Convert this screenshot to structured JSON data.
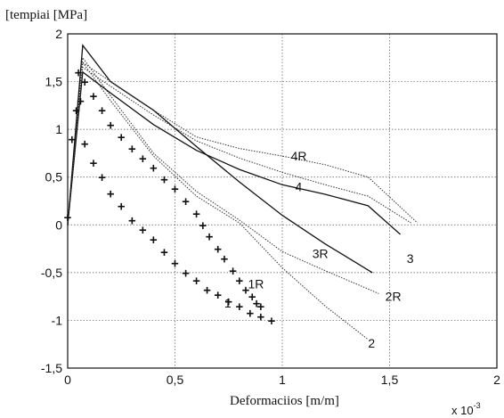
{
  "chart_data": {
    "type": "line",
    "ylabel": "[tempiai [MPa]",
    "xlabel": "Deformaciios [m/m]",
    "x_multiplier": "x 10",
    "x_multiplier_exp": "-3",
    "xlim": [
      0,
      2
    ],
    "ylim": [
      -1.5,
      2
    ],
    "grid": true,
    "x_ticks": [
      "0",
      "0,5",
      "1",
      "1,5",
      "2"
    ],
    "y_ticks": [
      "2",
      "1,5",
      "1",
      "0,5",
      "0",
      "-0,5",
      "-1",
      "-1,5"
    ],
    "series": [
      {
        "name": "1",
        "style": "plus",
        "points": [
          [
            0.0,
            0.08
          ],
          [
            0.02,
            0.9
          ],
          [
            0.04,
            1.2
          ],
          [
            0.06,
            1.3
          ],
          [
            0.08,
            0.85
          ],
          [
            0.12,
            0.65
          ],
          [
            0.16,
            0.5
          ],
          [
            0.2,
            0.33
          ],
          [
            0.25,
            0.2
          ],
          [
            0.3,
            0.05
          ],
          [
            0.35,
            -0.05
          ],
          [
            0.4,
            -0.15
          ],
          [
            0.45,
            -0.28
          ],
          [
            0.5,
            -0.4
          ],
          [
            0.55,
            -0.5
          ],
          [
            0.6,
            -0.58
          ],
          [
            0.65,
            -0.68
          ],
          [
            0.7,
            -0.73
          ],
          [
            0.75,
            -0.8
          ],
          [
            0.8,
            -0.85
          ],
          [
            0.85,
            -0.92
          ],
          [
            0.9,
            -0.96
          ],
          [
            0.95,
            -1.0
          ]
        ]
      },
      {
        "name": "1R",
        "style": "plus",
        "points": [
          [
            0.05,
            1.6
          ],
          [
            0.08,
            1.5
          ],
          [
            0.12,
            1.35
          ],
          [
            0.16,
            1.2
          ],
          [
            0.2,
            1.05
          ],
          [
            0.25,
            0.92
          ],
          [
            0.3,
            0.8
          ],
          [
            0.35,
            0.7
          ],
          [
            0.4,
            0.6
          ],
          [
            0.45,
            0.48
          ],
          [
            0.5,
            0.38
          ],
          [
            0.55,
            0.25
          ],
          [
            0.6,
            0.12
          ],
          [
            0.63,
            0.0
          ],
          [
            0.66,
            -0.12
          ],
          [
            0.7,
            -0.25
          ],
          [
            0.73,
            -0.35
          ],
          [
            0.77,
            -0.48
          ],
          [
            0.8,
            -0.58
          ],
          [
            0.83,
            -0.68
          ],
          [
            0.86,
            -0.75
          ],
          [
            0.88,
            -0.82
          ],
          [
            0.9,
            -0.85
          ]
        ]
      },
      {
        "name": "2",
        "style": "dotted",
        "points": [
          [
            0.0,
            0.0
          ],
          [
            0.07,
            1.7
          ],
          [
            0.2,
            1.3
          ],
          [
            0.4,
            0.72
          ],
          [
            0.6,
            0.3
          ],
          [
            0.8,
            0.02
          ],
          [
            1.0,
            -0.45
          ],
          [
            1.2,
            -0.85
          ],
          [
            1.4,
            -1.2
          ]
        ]
      },
      {
        "name": "2R",
        "style": "dotted",
        "points": [
          [
            0.0,
            0.0
          ],
          [
            0.07,
            1.75
          ],
          [
            0.2,
            1.35
          ],
          [
            0.4,
            0.75
          ],
          [
            0.6,
            0.35
          ],
          [
            0.8,
            0.05
          ],
          [
            1.0,
            -0.28
          ],
          [
            1.2,
            -0.48
          ],
          [
            1.45,
            -0.72
          ]
        ]
      },
      {
        "name": "3",
        "style": "solid",
        "points": [
          [
            0.0,
            0.0
          ],
          [
            0.07,
            1.6
          ],
          [
            0.2,
            1.38
          ],
          [
            0.4,
            1.05
          ],
          [
            0.6,
            0.78
          ],
          [
            0.8,
            0.58
          ],
          [
            1.0,
            0.42
          ],
          [
            1.2,
            0.32
          ],
          [
            1.4,
            0.2
          ],
          [
            1.55,
            -0.1
          ]
        ]
      },
      {
        "name": "3R",
        "style": "solid",
        "points": [
          [
            0.0,
            0.0
          ],
          [
            0.07,
            1.88
          ],
          [
            0.2,
            1.5
          ],
          [
            0.4,
            1.2
          ],
          [
            0.6,
            0.82
          ],
          [
            0.8,
            0.45
          ],
          [
            1.0,
            0.1
          ],
          [
            1.2,
            -0.2
          ],
          [
            1.42,
            -0.5
          ]
        ]
      },
      {
        "name": "4",
        "style": "dotted",
        "points": [
          [
            0.0,
            0.0
          ],
          [
            0.07,
            1.65
          ],
          [
            0.2,
            1.45
          ],
          [
            0.4,
            1.15
          ],
          [
            0.6,
            0.88
          ],
          [
            0.8,
            0.7
          ],
          [
            1.0,
            0.55
          ],
          [
            1.2,
            0.42
          ],
          [
            1.4,
            0.3
          ],
          [
            1.6,
            0.02
          ]
        ]
      },
      {
        "name": "4R",
        "style": "dotted",
        "points": [
          [
            0.0,
            0.0
          ],
          [
            0.07,
            1.7
          ],
          [
            0.2,
            1.5
          ],
          [
            0.4,
            1.2
          ],
          [
            0.6,
            0.92
          ],
          [
            0.8,
            0.8
          ],
          [
            1.0,
            0.72
          ],
          [
            1.2,
            0.63
          ],
          [
            1.4,
            0.5
          ],
          [
            1.63,
            0.02
          ]
        ]
      }
    ],
    "curve_labels": [
      {
        "text": "4R",
        "x": 1.04,
        "y": 0.72
      },
      {
        "text": "4",
        "x": 1.06,
        "y": 0.4
      },
      {
        "text": "3R",
        "x": 1.14,
        "y": -0.3
      },
      {
        "text": "3",
        "x": 1.58,
        "y": -0.35
      },
      {
        "text": "2R",
        "x": 1.48,
        "y": -0.75
      },
      {
        "text": "2",
        "x": 1.4,
        "y": -1.24
      },
      {
        "text": "1R",
        "x": 0.84,
        "y": -0.62
      },
      {
        "text": "1",
        "x": 0.73,
        "y": -0.82
      }
    ]
  }
}
